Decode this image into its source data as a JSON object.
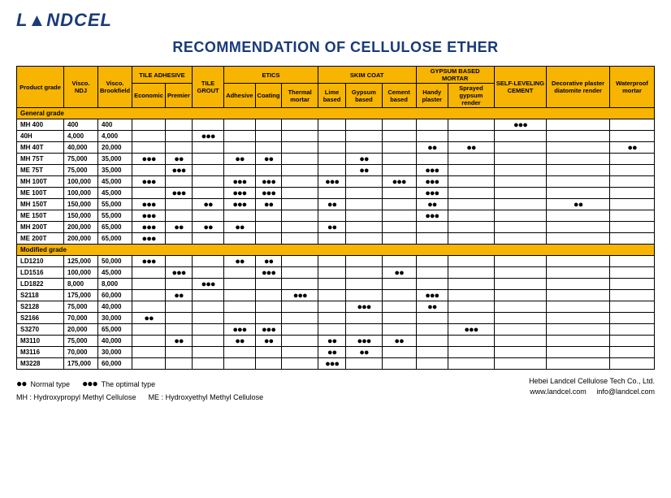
{
  "brand": "L▲NDCEL",
  "title": "RECOMMENDATION OF CELLULOSE ETHER",
  "colors": {
    "header_bg": "#f7b400",
    "title_color": "#1a3a7a",
    "border": "#000000",
    "bg": "#ffffff"
  },
  "typography": {
    "title_fontsize": 18,
    "table_fontsize": 8,
    "legend_fontsize": 9
  },
  "symbols": {
    "normal": "●●",
    "optimal": "●●●"
  },
  "header": {
    "row1": [
      "Product grade",
      "Visco. NDJ",
      "Visco. Brookfield",
      "TILE ADHESIVE",
      "TILE GROUT",
      "ETICS",
      "SKIM COAT",
      "GYPSUM BASED MORTAR",
      "SELF-LEVELING CEMENT",
      "Decorative plaster diatomite render",
      "Waterproof mortar"
    ],
    "tile_adhesive": [
      "Economic",
      "Premier"
    ],
    "etics": [
      "Adhesive",
      "Coating",
      "Thermal mortar"
    ],
    "skim": [
      "Lime based",
      "Gypsum based",
      "Cement based"
    ],
    "gypsum": [
      "Handy plaster",
      "Sprayed gypsum render"
    ]
  },
  "sections": [
    {
      "name": "General grade",
      "rows": [
        {
          "grade": "MH 400",
          "ndj": "400",
          "bf": "400",
          "c": [
            "",
            "",
            "",
            "",
            "",
            "",
            "",
            "",
            "",
            "",
            "",
            "●●●",
            "",
            ""
          ]
        },
        {
          "grade": "40H",
          "ndj": "4,000",
          "bf": "4,000",
          "c": [
            "",
            "",
            "●●●",
            "",
            "",
            "",
            "",
            "",
            "",
            "",
            "",
            "",
            "",
            ""
          ]
        },
        {
          "grade": "MH 40T",
          "ndj": "40,000",
          "bf": "20,000",
          "c": [
            "",
            "",
            "",
            "",
            "",
            "",
            "",
            "",
            "",
            "●●",
            "●●",
            "",
            "",
            "●●"
          ]
        },
        {
          "grade": "MH 75T",
          "ndj": "75,000",
          "bf": "35,000",
          "c": [
            "●●●",
            "●●",
            "",
            "●●",
            "●●",
            "",
            "",
            "●●",
            "",
            "",
            "",
            "",
            "",
            ""
          ]
        },
        {
          "grade": "ME 75T",
          "ndj": "75,000",
          "bf": "35,000",
          "c": [
            "",
            "●●●",
            "",
            "",
            "",
            "",
            "",
            "●●",
            "",
            "●●●",
            "",
            "",
            "",
            ""
          ]
        },
        {
          "grade": "MH 100T",
          "ndj": "100,000",
          "bf": "45,000",
          "c": [
            "●●●",
            "",
            "",
            "●●●",
            "●●●",
            "",
            "●●●",
            "",
            "●●●",
            "●●●",
            "",
            "",
            "",
            ""
          ]
        },
        {
          "grade": "ME 100T",
          "ndj": "100,000",
          "bf": "45,000",
          "c": [
            "",
            "●●●",
            "",
            "●●●",
            "●●●",
            "",
            "",
            "",
            "",
            "●●●",
            "",
            "",
            "",
            ""
          ]
        },
        {
          "grade": "MH 150T",
          "ndj": "150,000",
          "bf": "55,000",
          "c": [
            "●●●",
            "",
            "●●",
            "●●●",
            "●●",
            "",
            "●●",
            "",
            "",
            "●●",
            "",
            "",
            "●●",
            ""
          ]
        },
        {
          "grade": "ME 150T",
          "ndj": "150,000",
          "bf": "55,000",
          "c": [
            "●●●",
            "",
            "",
            "",
            "",
            "",
            "",
            "",
            "",
            "●●●",
            "",
            "",
            "",
            ""
          ]
        },
        {
          "grade": "MH 200T",
          "ndj": "200,000",
          "bf": "65,000",
          "c": [
            "●●●",
            "●●",
            "●●",
            "●●",
            "",
            "",
            "●●",
            "",
            "",
            "",
            "",
            "",
            "",
            ""
          ]
        },
        {
          "grade": "ME 200T",
          "ndj": "200,000",
          "bf": "65,000",
          "c": [
            "●●●",
            "",
            "",
            "",
            "",
            "",
            "",
            "",
            "",
            "",
            "",
            "",
            "",
            ""
          ]
        }
      ]
    },
    {
      "name": "Modified grade",
      "rows": [
        {
          "grade": "LD1210",
          "ndj": "125,000",
          "bf": "50,000",
          "c": [
            "●●●",
            "",
            "",
            "●●",
            "●●",
            "",
            "",
            "",
            "",
            "",
            "",
            "",
            "",
            ""
          ]
        },
        {
          "grade": "LD1516",
          "ndj": "100,000",
          "bf": "45,000",
          "c": [
            "",
            "●●●",
            "",
            "",
            "●●●",
            "",
            "",
            "",
            "●●",
            "",
            "",
            "",
            "",
            ""
          ]
        },
        {
          "grade": "LD1822",
          "ndj": "8,000",
          "bf": "8,000",
          "c": [
            "",
            "",
            "●●●",
            "",
            "",
            "",
            "",
            "",
            "",
            "",
            "",
            "",
            "",
            ""
          ]
        },
        {
          "grade": "S2118",
          "ndj": "175,000",
          "bf": "60,000",
          "c": [
            "",
            "●●",
            "",
            "",
            "",
            "●●●",
            "",
            "",
            "",
            "●●●",
            "",
            "",
            "",
            ""
          ]
        },
        {
          "grade": "S2128",
          "ndj": "75,000",
          "bf": "40,000",
          "c": [
            "",
            "",
            "",
            "",
            "",
            "",
            "",
            "●●●",
            "",
            "●●",
            "",
            "",
            "",
            ""
          ]
        },
        {
          "grade": "S2166",
          "ndj": "70,000",
          "bf": "30,000",
          "c": [
            "●●",
            "",
            "",
            "",
            "",
            "",
            "",
            "",
            "",
            "",
            "",
            "",
            "",
            ""
          ]
        },
        {
          "grade": "S3270",
          "ndj": "20,000",
          "bf": "65,000",
          "c": [
            "",
            "",
            "",
            "●●●",
            "●●●",
            "",
            "",
            "",
            "",
            "",
            "●●●",
            "",
            "",
            ""
          ]
        },
        {
          "grade": "M3110",
          "ndj": "75,000",
          "bf": "40,000",
          "c": [
            "",
            "●●",
            "",
            "●●",
            "●●",
            "",
            "●●",
            "●●●",
            "●●",
            "",
            "",
            "",
            "",
            ""
          ]
        },
        {
          "grade": "M3116",
          "ndj": "70,000",
          "bf": "30,000",
          "c": [
            "",
            "",
            "",
            "",
            "",
            "",
            "●●",
            "●●",
            "",
            "",
            "",
            "",
            "",
            ""
          ]
        },
        {
          "grade": "M3228",
          "ndj": "175,000",
          "bf": "60,000",
          "c": [
            "",
            "",
            "",
            "",
            "",
            "",
            "●●●",
            "",
            "",
            "",
            "",
            "",
            "",
            ""
          ]
        }
      ]
    }
  ],
  "legend": {
    "normal_label": "Normal type",
    "optimal_label": "The optimal type",
    "mh": "MH : Hydroxypropyl Methyl Cellulose",
    "me": "ME : Hydroxyethyl Methyl Cellulose",
    "company": "Hebei Landcel Cellulose Tech Co., Ltd.",
    "site": "www.landcel.com",
    "email": "info@landcel.com"
  }
}
